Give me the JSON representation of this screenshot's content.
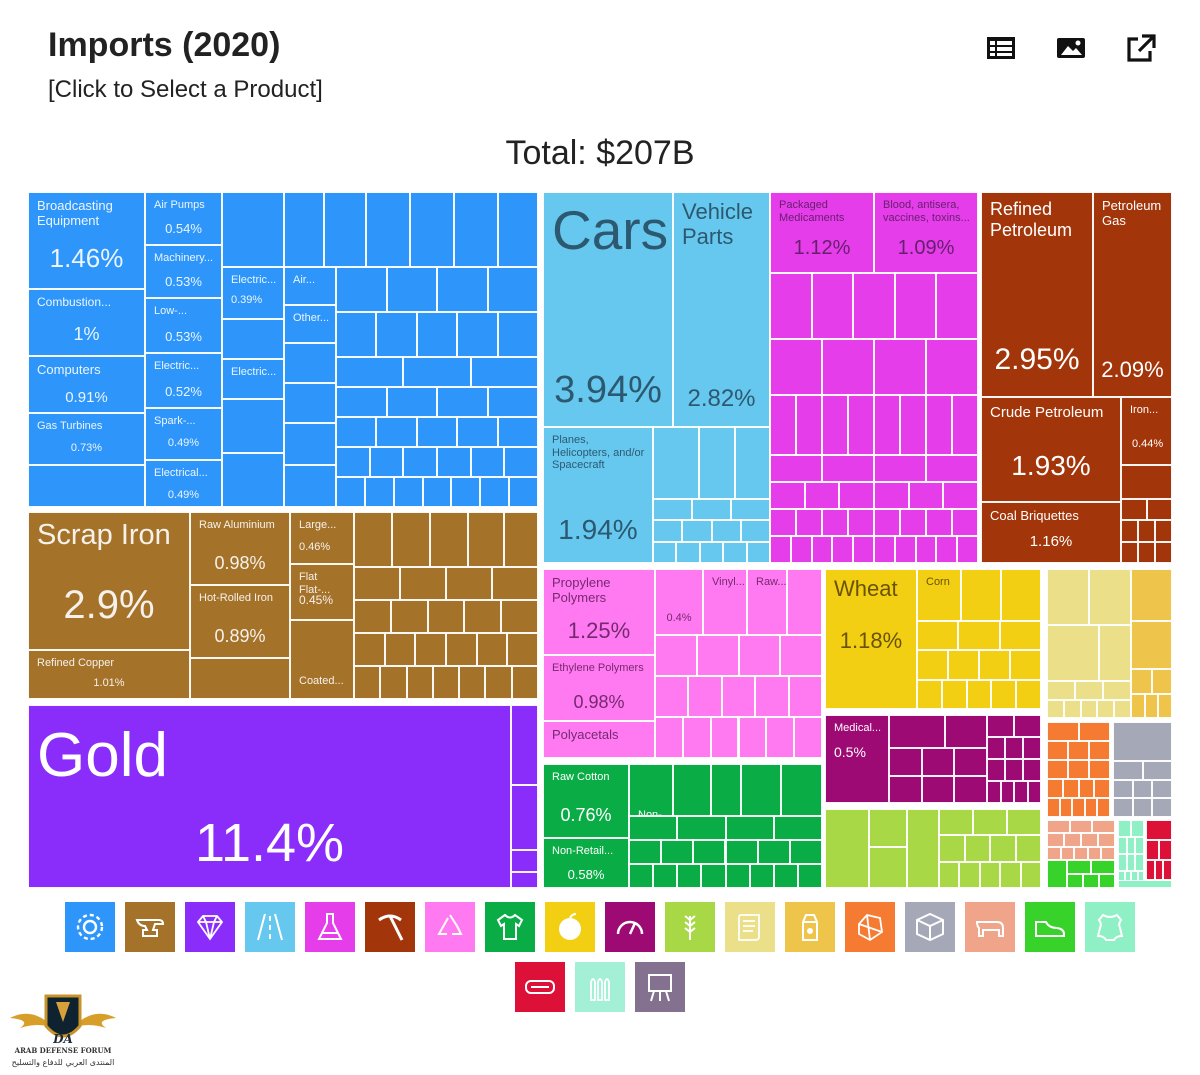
{
  "header": {
    "title": "Imports (2020)",
    "subtitle": "[Click to Select a Product]"
  },
  "total_label": "Total: $207B",
  "toolbar": [
    {
      "name": "table-icon"
    },
    {
      "name": "image-icon"
    },
    {
      "name": "share-icon"
    }
  ],
  "chart_data": {
    "type": "treemap",
    "title": "Total: $207B",
    "total": "$207B",
    "unit": "% of total imports",
    "sections": [
      {
        "name": "Machines",
        "color": "#2e96fa",
        "items": [
          {
            "label": "Broadcasting Equipment",
            "pct": "1.46%",
            "value": 1.46
          },
          {
            "label": "Air Pumps",
            "pct": "0.54%",
            "value": 0.54
          },
          {
            "label": "Machinery...",
            "pct": "0.53%",
            "value": 0.53
          },
          {
            "label": "Combustion...",
            "pct": "1%",
            "value": 1.0
          },
          {
            "label": "Low-...",
            "pct": "0.53%",
            "value": 0.53
          },
          {
            "label": "Electric...",
            "pct": "0.39%",
            "value": 0.39
          },
          {
            "label": "Air...",
            "pct": "",
            "value": null
          },
          {
            "label": "Other...",
            "pct": "",
            "value": null
          },
          {
            "label": "Computers",
            "pct": "0.91%",
            "value": 0.91
          },
          {
            "label": "Electric...",
            "pct": "0.52%",
            "value": 0.52
          },
          {
            "label": "Electric...",
            "pct": "",
            "value": null
          },
          {
            "label": "Gas Turbines",
            "pct": "0.73%",
            "value": 0.73
          },
          {
            "label": "Spark-...",
            "pct": "0.49%",
            "value": 0.49
          },
          {
            "label": "Electrical...",
            "pct": "0.49%",
            "value": 0.49
          }
        ]
      },
      {
        "name": "Metals",
        "color": "#a5722a",
        "items": [
          {
            "label": "Scrap Iron",
            "pct": "2.9%",
            "value": 2.9
          },
          {
            "label": "Raw Aluminium",
            "pct": "0.98%",
            "value": 0.98
          },
          {
            "label": "Large...",
            "pct": "0.46%",
            "value": 0.46
          },
          {
            "label": "Hot-Rolled Iron",
            "pct": "0.89%",
            "value": 0.89
          },
          {
            "label": "Flat Flat-...",
            "pct": "0.45%",
            "value": 0.45
          },
          {
            "label": "Refined Copper",
            "pct": "1.01%",
            "value": 1.01
          },
          {
            "label": "Coated...",
            "pct": "",
            "value": null
          }
        ]
      },
      {
        "name": "Precious Metals",
        "color": "#8a2cfa",
        "items": [
          {
            "label": "Gold",
            "pct": "11.4%",
            "value": 11.4
          }
        ]
      },
      {
        "name": "Transportation",
        "color": "#66c8ee",
        "items": [
          {
            "label": "Cars",
            "pct": "3.94%",
            "value": 3.94
          },
          {
            "label": "Vehicle Parts",
            "pct": "2.82%",
            "value": 2.82
          },
          {
            "label": "Planes, Helicopters, and/or Spacecraft",
            "pct": "1.94%",
            "value": 1.94
          }
        ]
      },
      {
        "name": "Chemical Products",
        "color": "#e53de9",
        "items": [
          {
            "label": "Packaged Medicaments",
            "pct": "1.12%",
            "value": 1.12
          },
          {
            "label": "Blood, antisera, vaccines, toxins...",
            "pct": "1.09%",
            "value": 1.09
          }
        ]
      },
      {
        "name": "Mineral Products",
        "color": "#a3350a",
        "items": [
          {
            "label": "Refined Petroleum",
            "pct": "2.95%",
            "value": 2.95
          },
          {
            "label": "Petroleum Gas",
            "pct": "2.09%",
            "value": 2.09
          },
          {
            "label": "Crude Petroleum",
            "pct": "1.93%",
            "value": 1.93
          },
          {
            "label": "Iron...",
            "pct": "0.44%",
            "value": 0.44
          },
          {
            "label": "Coal Briquettes",
            "pct": "1.16%",
            "value": 1.16
          }
        ]
      },
      {
        "name": "Plastics and Rubbers",
        "color": "#ff7af0",
        "items": [
          {
            "label": "Propylene Polymers",
            "pct": "1.25%",
            "value": 1.25
          },
          {
            "label": "",
            "pct": "0.4%",
            "value": 0.4
          },
          {
            "label": "Vinyl...",
            "pct": "",
            "value": null
          },
          {
            "label": "Raw...",
            "pct": "",
            "value": null
          },
          {
            "label": "Ethylene Polymers",
            "pct": "0.98%",
            "value": 0.98
          },
          {
            "label": "Polyacetals",
            "pct": "",
            "value": null
          }
        ]
      },
      {
        "name": "Vegetable Products",
        "color": "#f3cf14",
        "items": [
          {
            "label": "Wheat",
            "pct": "1.18%",
            "value": 1.18
          },
          {
            "label": "Corn",
            "pct": "",
            "value": null
          }
        ]
      },
      {
        "name": "Instruments",
        "color": "#9e0a73",
        "items": [
          {
            "label": "Medical...",
            "pct": "0.5%",
            "value": 0.5
          }
        ]
      },
      {
        "name": "Textiles",
        "color": "#0aad45",
        "items": [
          {
            "label": "Raw Cotton",
            "pct": "0.76%",
            "value": 0.76
          },
          {
            "label": "Non-...",
            "pct": "",
            "value": null
          },
          {
            "label": "Non-Retail...",
            "pct": "0.58%",
            "value": 0.58
          }
        ]
      },
      {
        "name": "Animal and Vegetable Bi-Products",
        "color": "#a8d846",
        "items": []
      },
      {
        "name": "Paper Goods",
        "color": "#ecdf8a",
        "items": []
      },
      {
        "name": "Foodstuffs",
        "color": "#eec44a",
        "items": []
      },
      {
        "name": "Stone And Glass",
        "color": "#f57b32",
        "items": []
      },
      {
        "name": "Miscellaneous",
        "color": "#a5a9b7",
        "items": []
      },
      {
        "name": "Animal Products",
        "color": "#f0a58a",
        "items": []
      },
      {
        "name": "Footwear and Headwear",
        "color": "#37d22a",
        "items": []
      },
      {
        "name": "Animal Hides",
        "color": "#8ff0c6",
        "items": []
      },
      {
        "name": "Weapons",
        "color": "#dd1037",
        "items": []
      }
    ]
  },
  "category_icons_row1": [
    {
      "name": "gear-icon",
      "color": "#2e96fa"
    },
    {
      "name": "anvil-icon",
      "color": "#a5722a"
    },
    {
      "name": "diamond-icon",
      "color": "#8a2cfa"
    },
    {
      "name": "road-icon",
      "color": "#66c8ee"
    },
    {
      "name": "flask-icon",
      "color": "#e53de9"
    },
    {
      "name": "pickaxe-icon",
      "color": "#a3350a"
    },
    {
      "name": "recycle-icon",
      "color": "#ff7af0"
    },
    {
      "name": "shirt-icon",
      "color": "#0aad45"
    },
    {
      "name": "fruit-icon",
      "color": "#f3cf14"
    },
    {
      "name": "gauge-icon",
      "color": "#9e0a73"
    },
    {
      "name": "wheat-icon",
      "color": "#a8d846"
    },
    {
      "name": "scroll-icon",
      "color": "#ecdf8a"
    },
    {
      "name": "milk-carton-icon",
      "color": "#eec44a"
    },
    {
      "name": "gem-stone-icon",
      "color": "#f57b32"
    },
    {
      "name": "box-icon",
      "color": "#a5a9b7"
    },
    {
      "name": "cow-icon",
      "color": "#f0a58a"
    },
    {
      "name": "shoe-icon",
      "color": "#37d22a"
    },
    {
      "name": "hide-icon",
      "color": "#8ff0c6"
    }
  ],
  "category_icons_row2": [
    {
      "name": "weapon-icon",
      "color": "#dd1037"
    },
    {
      "name": "bullets-icon",
      "color": "#a4f0d6"
    },
    {
      "name": "easel-icon",
      "color": "#84708f"
    }
  ],
  "logo": {
    "name": "ARAB DEFENSE FORUM",
    "sub": "المنتدى العربي للدفاع والتسليح",
    "mark": "DA"
  }
}
